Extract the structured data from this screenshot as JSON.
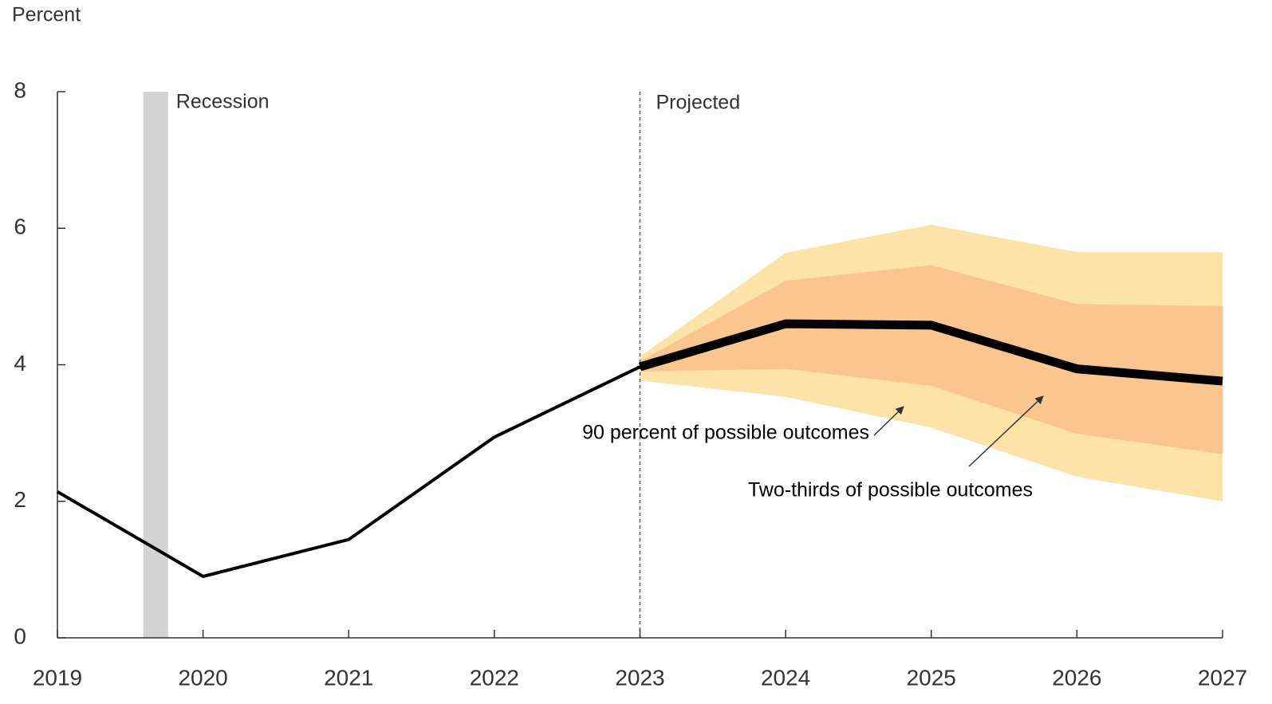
{
  "chart_data": {
    "type": "line",
    "y_label": "Percent",
    "xlim": [
      2019,
      2027
    ],
    "xticks": [
      2019,
      2020,
      2021,
      2022,
      2023,
      2024,
      2025,
      2026,
      2027
    ],
    "ylim": [
      0,
      8
    ],
    "yticks": [
      0,
      2,
      4,
      6,
      8
    ],
    "shaded_regions": [
      {
        "label": "Recession",
        "x": [
          2019.59,
          2019.76
        ],
        "color": "#d3d3d3"
      }
    ],
    "vline": {
      "x": 2023,
      "label": "Projected"
    },
    "bands": [
      {
        "label": "90 percent of possible outcomes",
        "color": "#fde3a7",
        "x": [
          2023,
          2024,
          2025,
          2026,
          2027
        ],
        "upper": [
          4.12,
          5.64,
          6.05,
          5.65,
          5.65
        ],
        "lower": [
          3.77,
          3.53,
          3.08,
          2.36,
          2.0
        ]
      },
      {
        "label": "Two-thirds of possible outcomes",
        "color": "#fbc58f",
        "x": [
          2023,
          2024,
          2025,
          2026,
          2027
        ],
        "upper": [
          4.05,
          5.23,
          5.46,
          4.89,
          4.86
        ],
        "lower": [
          3.9,
          3.94,
          3.69,
          2.99,
          2.69
        ]
      }
    ],
    "lines": [
      {
        "color": "#000000",
        "width": 4,
        "x": [
          2019,
          2020,
          2021,
          2022,
          2023
        ],
        "values": [
          2.14,
          0.9,
          1.44,
          2.94,
          3.97
        ]
      },
      {
        "color": "#000000",
        "width": 11,
        "x": [
          2023,
          2024,
          2025,
          2026,
          2027
        ],
        "values": [
          3.97,
          4.6,
          4.58,
          3.94,
          3.76
        ]
      }
    ]
  }
}
